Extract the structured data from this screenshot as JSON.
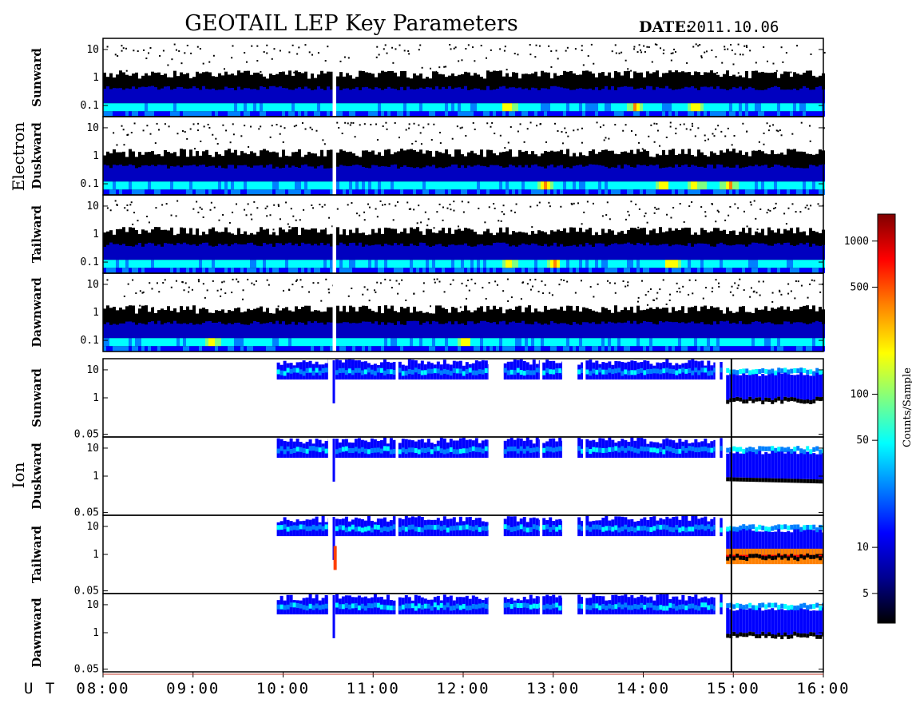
{
  "chart_data": {
    "type": "heatmap",
    "title": "GEOTAIL LEP Key Parameters",
    "date_label": "DATE:",
    "date_value": "2011.10.06",
    "x_axis_label": "U T",
    "x_ticks": [
      "08:00",
      "09:00",
      "10:00",
      "11:00",
      "12:00",
      "13:00",
      "14:00",
      "15:00",
      "16:00"
    ],
    "x_range_hours": [
      8,
      16
    ],
    "groups": [
      {
        "name": "Electron",
        "y_ticks": [
          "10",
          "1",
          "0.1"
        ],
        "y_tick_values": [
          10,
          1,
          0.1
        ],
        "y_range": [
          0.04,
          25
        ],
        "panels": [
          {
            "direction": "Sunward",
            "peak_times": [
              12.5,
              13.9,
              14.55
            ],
            "burst_times": [
              14.95
            ]
          },
          {
            "direction": "Duskward",
            "peak_times": [
              12.9,
              14.2,
              14.55,
              14.95
            ],
            "burst_times": [
              14.6,
              14.95
            ]
          },
          {
            "direction": "Tailward",
            "peak_times": [
              12.5,
              13.0,
              14.3
            ],
            "burst_times": []
          },
          {
            "direction": "Dawnward",
            "peak_times": [
              9.2,
              12.0
            ],
            "burst_times": []
          }
        ],
        "data_gap_hours": [
          10.55,
          10.58
        ]
      },
      {
        "name": "Ion",
        "y_ticks": [
          "10",
          "1",
          "0.05"
        ],
        "y_tick_values": [
          10,
          1,
          0.05
        ],
        "y_range": [
          0.04,
          25
        ],
        "panels": [
          {
            "direction": "Sunward",
            "low_energy_band": false
          },
          {
            "direction": "Duskward",
            "low_energy_band": false
          },
          {
            "direction": "Tailward",
            "low_energy_band": true
          },
          {
            "direction": "Dawnward",
            "low_energy_band": false
          }
        ],
        "data_intervals_hours": [
          [
            9.93,
            10.5
          ],
          [
            10.58,
            11.25
          ],
          [
            11.28,
            12.28
          ],
          [
            12.45,
            12.85
          ],
          [
            12.88,
            13.1
          ],
          [
            13.27,
            13.33
          ],
          [
            13.36,
            14.8
          ],
          [
            14.85,
            14.88
          ],
          [
            14.92,
            16.0
          ]
        ]
      }
    ],
    "colorbar": {
      "label": "Counts/Sample",
      "ticks": [
        "1000",
        "500",
        "100",
        "50",
        "10",
        "5"
      ],
      "tick_values": [
        1000,
        500,
        100,
        50,
        10,
        5
      ],
      "range": [
        3.2,
        1500
      ],
      "scale": "log",
      "colormap": [
        "#000000",
        "#00008f",
        "#0000ff",
        "#0080ff",
        "#00ffff",
        "#80ff80",
        "#ffff00",
        "#ff8000",
        "#ff0000",
        "#800000"
      ]
    }
  }
}
